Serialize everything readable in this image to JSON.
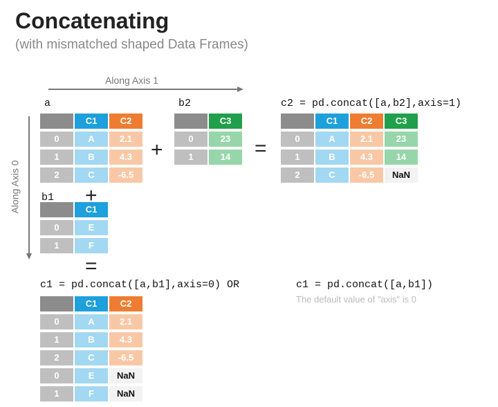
{
  "title": "Concatenating",
  "subtitle": "(with mismatched shaped Data Frames)",
  "axis1_label": "Along Axis 1",
  "axis0_label": "Along Axis 0",
  "operators": [
    "+",
    "=",
    "+",
    "="
  ],
  "tables": [
    {
      "label": "a",
      "columns": [
        "C1",
        "C2"
      ],
      "rows": [
        [
          "0",
          "A",
          "2.1"
        ],
        [
          "1",
          "B",
          "4.3"
        ],
        [
          "2",
          "C",
          "-6.5"
        ]
      ]
    },
    {
      "label": "b2",
      "columns": [
        "C3"
      ],
      "rows": [
        [
          "0",
          "23"
        ],
        [
          "1",
          "14"
        ]
      ]
    },
    {
      "label": "c2 = pd.concat([a,b2],axis=1)",
      "columns": [
        "C1",
        "C2",
        "C3"
      ],
      "rows": [
        [
          "0",
          "A",
          "2.1",
          "23"
        ],
        [
          "1",
          "B",
          "4.3",
          "14"
        ],
        [
          "2",
          "C",
          "-6.5",
          "NaN"
        ]
      ]
    },
    {
      "label": "b1",
      "columns": [
        "C1"
      ],
      "rows": [
        [
          "0",
          "E"
        ],
        [
          "1",
          "F"
        ]
      ]
    },
    {
      "label": "c1 = pd.concat([a,b1],axis=0) OR",
      "columns": [
        "C1",
        "C2"
      ],
      "rows": [
        [
          "0",
          "A",
          "2.1"
        ],
        [
          "1",
          "B",
          "4.3"
        ],
        [
          "2",
          "C",
          "-6.5"
        ],
        [
          "0",
          "E",
          "NaN"
        ],
        [
          "1",
          "F",
          "NaN"
        ]
      ]
    }
  ],
  "alt_code": "c1 = pd.concat([a,b1])",
  "note": "The default value of \"axis\" is 0"
}
